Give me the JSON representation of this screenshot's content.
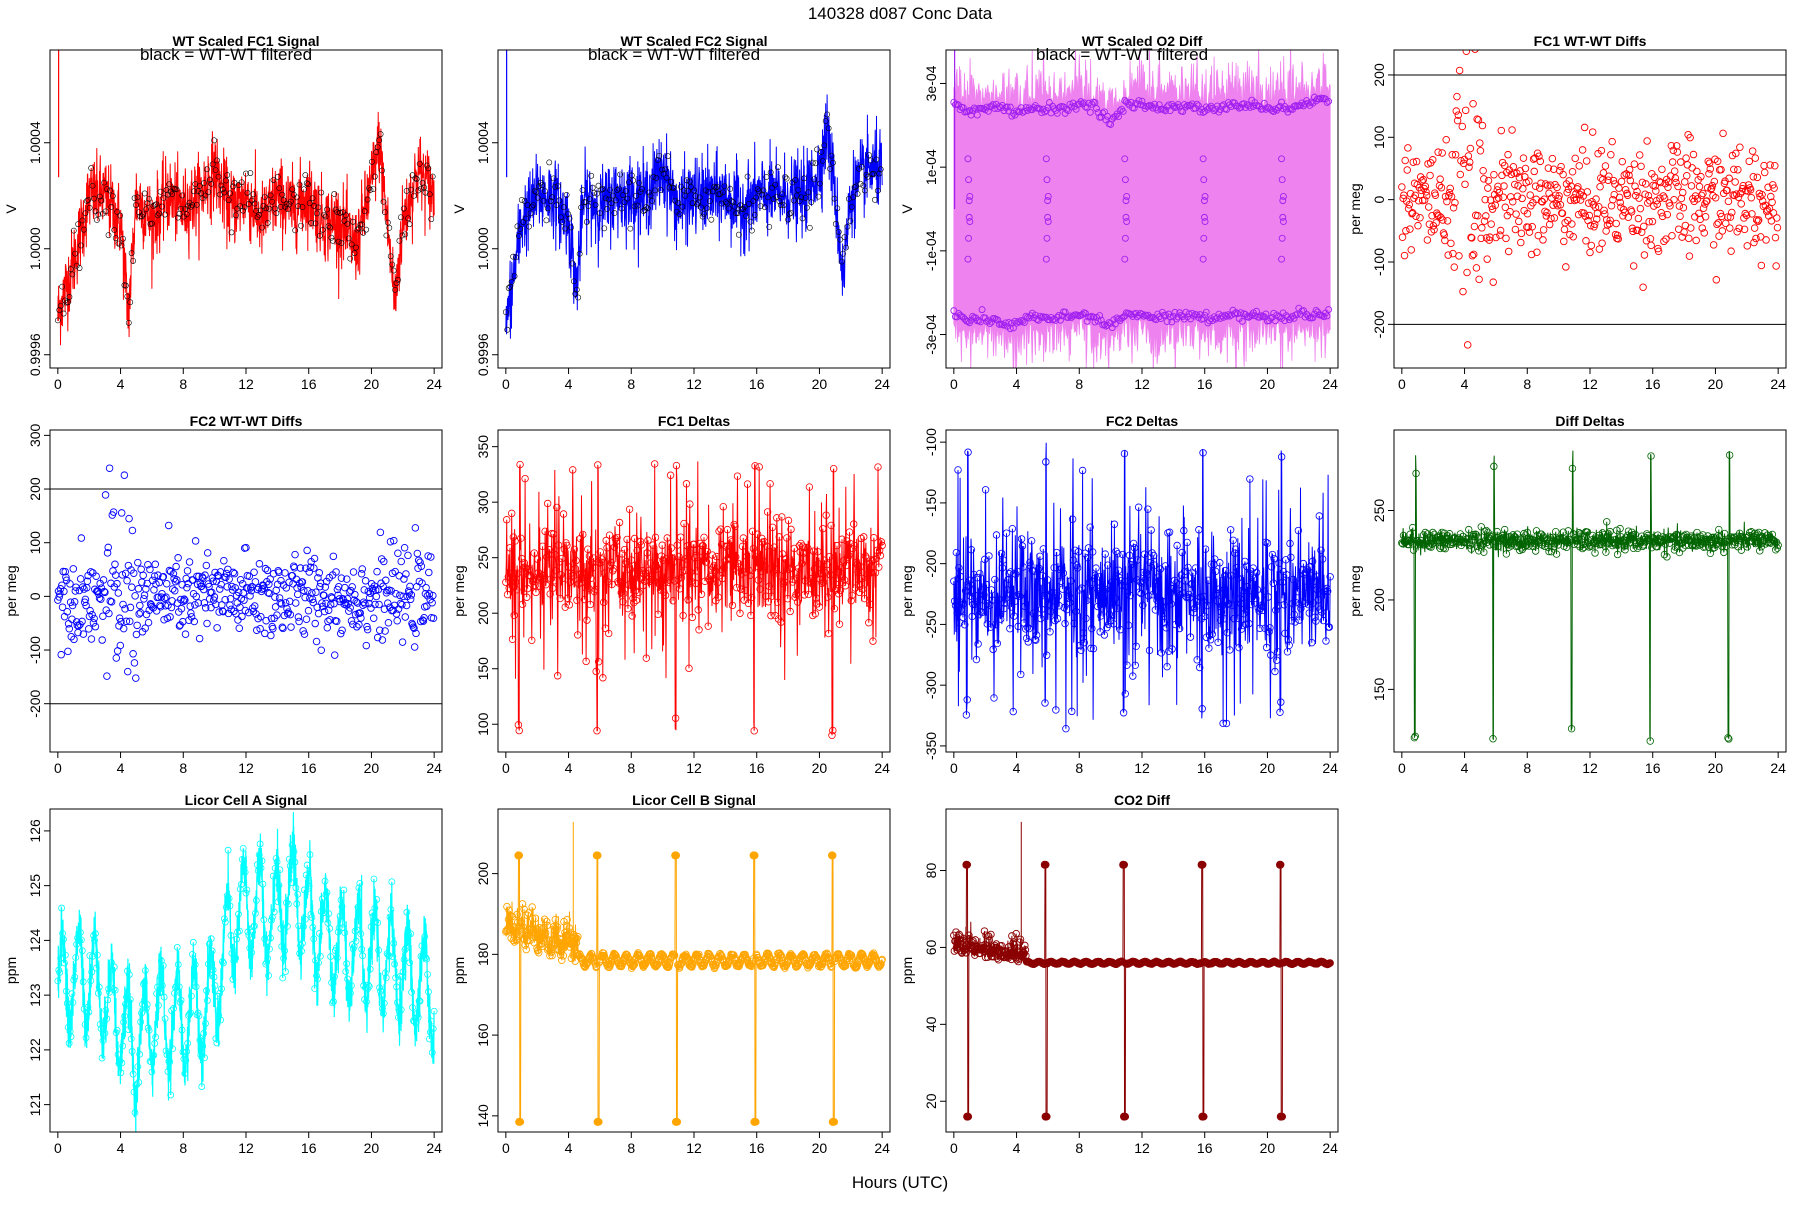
{
  "figure": {
    "title": "140328   d087   Conc Data",
    "xlabel": "Hours (UTC)",
    "note": "black = WT-WT filtered"
  },
  "colors": {
    "red": "#ff0000",
    "blue": "#0000ff",
    "violet_fill": "#ee82ee",
    "purple": "#a020f0",
    "darkgreen": "#006400",
    "cyan": "#00ffff",
    "orange": "#ffa500",
    "darkred": "#8b0000",
    "black": "#000000"
  },
  "chart_data": [
    {
      "id": "p1",
      "type": "line",
      "title": "WT Scaled FC1 Signal",
      "note": "black = WT-WT filtered",
      "ylabel": "V",
      "xlim": [
        -0.5,
        24.5
      ],
      "ylim": [
        0.99955,
        1.00075
      ],
      "xticks": [
        0,
        4,
        8,
        12,
        16,
        20,
        24
      ],
      "xticklabels": [
        "0",
        "4",
        "8",
        "12",
        "16",
        "20",
        "24"
      ],
      "yticks": [
        0.9996,
        1.0,
        1.0004
      ],
      "yticklabels": [
        "0.9996",
        "1.0000",
        "1.0004"
      ],
      "color": "red",
      "style": "noisy",
      "overlay_color": "black",
      "trend": [
        [
          0,
          0.99975
        ],
        [
          1,
          0.99995
        ],
        [
          2,
          1.0002
        ],
        [
          3,
          1.0002
        ],
        [
          4,
          1.0001
        ],
        [
          4.5,
          0.99975
        ],
        [
          5,
          1.0002
        ],
        [
          6,
          1.0001
        ],
        [
          7,
          1.0002
        ],
        [
          8,
          1.00015
        ],
        [
          9,
          1.0002
        ],
        [
          10,
          1.0003
        ],
        [
          11,
          1.00015
        ],
        [
          12,
          1.0002
        ],
        [
          13,
          1.0001
        ],
        [
          14,
          1.0002
        ],
        [
          15,
          1.00015
        ],
        [
          16,
          1.0002
        ],
        [
          17,
          1.0001
        ],
        [
          18,
          1.0001
        ],
        [
          19,
          1.0
        ],
        [
          20,
          1.00025
        ],
        [
          20.5,
          1.0004
        ],
        [
          21,
          1.0001
        ],
        [
          21.5,
          0.9998
        ],
        [
          22,
          1.0001
        ],
        [
          23,
          1.0003
        ],
        [
          24,
          1.0002
        ]
      ],
      "amp": 8e-05
    },
    {
      "id": "p2",
      "type": "line",
      "title": "WT Scaled FC2 Signal",
      "note": "black = WT-WT filtered",
      "ylabel": "V",
      "xlim": [
        -0.5,
        24.5
      ],
      "ylim": [
        0.99955,
        1.00075
      ],
      "xticks": [
        0,
        4,
        8,
        12,
        16,
        20,
        24
      ],
      "xticklabels": [
        "0",
        "4",
        "8",
        "12",
        "16",
        "20",
        "24"
      ],
      "yticks": [
        0.9996,
        1.0,
        1.0004
      ],
      "yticklabels": [
        "0.9996",
        "1.0000",
        "1.0004"
      ],
      "color": "blue",
      "style": "noisy",
      "overlay_color": "black",
      "trend": [
        [
          0,
          0.9997
        ],
        [
          1,
          1.0001
        ],
        [
          2,
          1.0002
        ],
        [
          3,
          1.0002
        ],
        [
          4,
          1.0001
        ],
        [
          4.5,
          0.99985
        ],
        [
          5,
          1.0002
        ],
        [
          6,
          1.00015
        ],
        [
          7,
          1.0002
        ],
        [
          8,
          1.0002
        ],
        [
          9,
          1.0002
        ],
        [
          10,
          1.0003
        ],
        [
          11,
          1.00015
        ],
        [
          12,
          1.0002
        ],
        [
          13,
          1.0002
        ],
        [
          14,
          1.0002
        ],
        [
          15,
          1.00015
        ],
        [
          16,
          1.0002
        ],
        [
          17,
          1.0002
        ],
        [
          18,
          1.0002
        ],
        [
          19,
          1.0002
        ],
        [
          20,
          1.0003
        ],
        [
          20.5,
          1.00045
        ],
        [
          21,
          1.0002
        ],
        [
          21.5,
          0.9999
        ],
        [
          22,
          1.0002
        ],
        [
          23,
          1.0003
        ],
        [
          24,
          1.0003
        ]
      ],
      "amp": 8e-05
    },
    {
      "id": "p3",
      "type": "band",
      "title": "WT Scaled O2 Diff",
      "note": "black = WT-WT filtered",
      "ylabel": "V",
      "xlim": [
        -0.5,
        24.5
      ],
      "ylim": [
        -0.00038,
        0.00038
      ],
      "xticks": [
        0,
        4,
        8,
        12,
        16,
        20,
        24
      ],
      "xticklabels": [
        "0",
        "4",
        "8",
        "12",
        "16",
        "20",
        "24"
      ],
      "yticks": [
        -0.0003,
        -0.0001,
        0.0001,
        0.0003
      ],
      "yticklabels": [
        "-3e-04",
        "-1e-04",
        "1e-04",
        "3e-04"
      ],
      "color": "violet_fill",
      "point_color": "purple",
      "overlay_color": "black",
      "upper": [
        [
          0,
          0.00025
        ],
        [
          1,
          0.00023
        ],
        [
          2,
          0.00024
        ],
        [
          3,
          0.00024
        ],
        [
          4,
          0.00023
        ],
        [
          5,
          0.00024
        ],
        [
          6,
          0.00024
        ],
        [
          7,
          0.00024
        ],
        [
          8,
          0.00025
        ],
        [
          9,
          0.00024
        ],
        [
          10,
          0.00021
        ],
        [
          11,
          0.00025
        ],
        [
          12,
          0.00025
        ],
        [
          13,
          0.00024
        ],
        [
          14,
          0.00024
        ],
        [
          15,
          0.00025
        ],
        [
          16,
          0.00024
        ],
        [
          17,
          0.00024
        ],
        [
          18,
          0.00025
        ],
        [
          19,
          0.00025
        ],
        [
          20,
          0.00024
        ],
        [
          21,
          0.00024
        ],
        [
          22,
          0.00025
        ],
        [
          23,
          0.00026
        ],
        [
          24,
          0.00026
        ]
      ],
      "lower": [
        [
          0,
          -0.00025
        ],
        [
          1,
          -0.00027
        ],
        [
          2,
          -0.00026
        ],
        [
          3,
          -0.00027
        ],
        [
          4,
          -0.00028
        ],
        [
          5,
          -0.00026
        ],
        [
          6,
          -0.00026
        ],
        [
          7,
          -0.00026
        ],
        [
          8,
          -0.00025
        ],
        [
          9,
          -0.00026
        ],
        [
          10,
          -0.00028
        ],
        [
          11,
          -0.00025
        ],
        [
          12,
          -0.00025
        ],
        [
          13,
          -0.00026
        ],
        [
          14,
          -0.00026
        ],
        [
          15,
          -0.00025
        ],
        [
          16,
          -0.00026
        ],
        [
          17,
          -0.00026
        ],
        [
          18,
          -0.00025
        ],
        [
          19,
          -0.00025
        ],
        [
          20,
          -0.00026
        ],
        [
          21,
          -0.00026
        ],
        [
          22,
          -0.00025
        ],
        [
          23,
          -0.00025
        ],
        [
          24,
          -0.00025
        ]
      ],
      "spikes": [
        0.9,
        5.9,
        10.9,
        15.9,
        20.9
      ]
    },
    {
      "id": "p4",
      "type": "scatter",
      "title": "FC1 WT-WT Diffs",
      "note": "",
      "ylabel": "per meg",
      "xlim": [
        -0.5,
        24.5
      ],
      "ylim": [
        -270,
        240
      ],
      "xticks": [
        0,
        4,
        8,
        12,
        16,
        20,
        24
      ],
      "xticklabels": [
        "0",
        "4",
        "8",
        "12",
        "16",
        "20",
        "24"
      ],
      "yticks": [
        -200,
        -100,
        0,
        100,
        200
      ],
      "yticklabels": [
        "-200",
        "-100",
        "0",
        "100",
        "200"
      ],
      "hlines": [
        200,
        -200
      ],
      "color": "red",
      "center": 0,
      "spread": 45,
      "wide": [
        3,
        5.2,
        140
      ],
      "count": 560
    },
    {
      "id": "p5",
      "type": "scatter",
      "title": "FC2 WT-WT Diffs",
      "note": "",
      "ylabel": "per meg",
      "xlim": [
        -0.5,
        24.5
      ],
      "ylim": [
        -290,
        310
      ],
      "xticks": [
        0,
        4,
        8,
        12,
        16,
        20,
        24
      ],
      "xticklabels": [
        "0",
        "4",
        "8",
        "12",
        "16",
        "20",
        "24"
      ],
      "yticks": [
        -200,
        -100,
        0,
        100,
        200,
        300
      ],
      "yticklabels": [
        "-200",
        "-100",
        "0",
        "100",
        "200",
        "300"
      ],
      "hlines": [
        200,
        -200
      ],
      "color": "blue",
      "center": 0,
      "spread": 40,
      "wide": [
        3,
        5,
        130
      ],
      "count": 560
    },
    {
      "id": "p6",
      "type": "spiky",
      "title": "FC1 Deltas",
      "note": "",
      "ylabel": "per meg",
      "xlim": [
        -0.5,
        24.5
      ],
      "ylim": [
        75,
        365
      ],
      "xticks": [
        0,
        4,
        8,
        12,
        16,
        20,
        24
      ],
      "xticklabels": [
        "0",
        "4",
        "8",
        "12",
        "16",
        "20",
        "24"
      ],
      "yticks": [
        100,
        150,
        200,
        250,
        300,
        350
      ],
      "yticklabels": [
        "100",
        "150",
        "200",
        "250",
        "300",
        "350"
      ],
      "color": "red",
      "center": 238,
      "spread": 22,
      "spikes": [
        0.8,
        5.8,
        10.8,
        15.8,
        20.8
      ],
      "spike_low": 95,
      "spike_high": 330
    },
    {
      "id": "p7",
      "type": "spiky",
      "title": "FC2 Deltas",
      "note": "",
      "ylabel": "per meg",
      "xlim": [
        -0.5,
        24.5
      ],
      "ylim": [
        -355,
        -90
      ],
      "xticks": [
        0,
        4,
        8,
        12,
        16,
        20,
        24
      ],
      "xticklabels": [
        "0",
        "4",
        "8",
        "12",
        "16",
        "20",
        "24"
      ],
      "yticks": [
        -350,
        -300,
        -250,
        -200,
        -150,
        -100
      ],
      "yticklabels": [
        "-350",
        "-300",
        "-250",
        "-200",
        "-150",
        "-100"
      ],
      "color": "blue",
      "center": -225,
      "spread": 25,
      "spikes": [
        0.8,
        5.8,
        10.8,
        15.8,
        20.8
      ],
      "spike_low": -320,
      "spike_high": -110
    },
    {
      "id": "p8",
      "type": "spiky",
      "title": "Diff Deltas",
      "note": "",
      "ylabel": "per meg",
      "xlim": [
        -0.5,
        24.5
      ],
      "ylim": [
        115,
        295
      ],
      "xticks": [
        0,
        4,
        8,
        12,
        16,
        20,
        24
      ],
      "xticklabels": [
        "0",
        "4",
        "8",
        "12",
        "16",
        "20",
        "24"
      ],
      "yticks": [
        150,
        200,
        250
      ],
      "yticklabels": [
        "150",
        "200",
        "250"
      ],
      "color": "darkgreen",
      "center": 233,
      "spread": 3,
      "spikes": [
        0.8,
        5.8,
        10.8,
        15.8,
        20.8
      ],
      "spike_low": 125,
      "spike_high": 280
    },
    {
      "id": "p9",
      "type": "oscillation",
      "title": "Licor Cell A Signal",
      "note": "",
      "ylabel": "ppm",
      "xlim": [
        -0.5,
        24.5
      ],
      "ylim": [
        120.5,
        126.4
      ],
      "xticks": [
        0,
        4,
        8,
        12,
        16,
        20,
        24
      ],
      "xticklabels": [
        "0",
        "4",
        "8",
        "12",
        "16",
        "20",
        "24"
      ],
      "yticks": [
        121,
        122,
        123,
        124,
        125,
        126
      ],
      "yticklabels": [
        "121",
        "122",
        "123",
        "124",
        "125",
        "126"
      ],
      "color": "cyan",
      "trend": [
        [
          0,
          123.2
        ],
        [
          2,
          123.4
        ],
        [
          4,
          122.5
        ],
        [
          5,
          122.0
        ],
        [
          6,
          122.6
        ],
        [
          8,
          122.5
        ],
        [
          10,
          123.0
        ],
        [
          11,
          124.2
        ],
        [
          12,
          124.6
        ],
        [
          14,
          124.5
        ],
        [
          15,
          124.9
        ],
        [
          16,
          124.4
        ],
        [
          18,
          123.8
        ],
        [
          20,
          123.8
        ],
        [
          22,
          123.4
        ],
        [
          24,
          123.0
        ]
      ],
      "amp": 1.0
    },
    {
      "id": "p10",
      "type": "steady",
      "title": "Licor Cell B Signal",
      "note": "",
      "ylabel": "ppm",
      "xlim": [
        -0.5,
        24.5
      ],
      "ylim": [
        136,
        216
      ],
      "xticks": [
        0,
        4,
        8,
        12,
        16,
        20,
        24
      ],
      "xticklabels": [
        "0",
        "4",
        "8",
        "12",
        "16",
        "20",
        "24"
      ],
      "yticks": [
        140,
        160,
        180,
        200
      ],
      "yticklabels": [
        "140",
        "160",
        "180",
        "200"
      ],
      "color": "orange",
      "base": 178.5,
      "wave": 1.5,
      "spikes": [
        0.8,
        5.8,
        10.8,
        15.8,
        20.8
      ],
      "spike_low": 138.5,
      "spike_high": 204.5
    },
    {
      "id": "p11",
      "type": "steady",
      "title": "CO2 Diff",
      "note": "",
      "ylabel": "ppm",
      "xlim": [
        -0.5,
        24.5
      ],
      "ylim": [
        12,
        96
      ],
      "xticks": [
        0,
        4,
        8,
        12,
        16,
        20,
        24
      ],
      "xticklabels": [
        "0",
        "4",
        "8",
        "12",
        "16",
        "20",
        "24"
      ],
      "yticks": [
        20,
        40,
        60,
        80
      ],
      "yticklabels": [
        "20",
        "40",
        "60",
        "80"
      ],
      "color": "darkred",
      "base": 56,
      "wave": 0.3,
      "spikes": [
        0.8,
        5.8,
        10.8,
        15.8,
        20.8
      ],
      "spike_low": 16,
      "spike_high": 81.5
    }
  ]
}
